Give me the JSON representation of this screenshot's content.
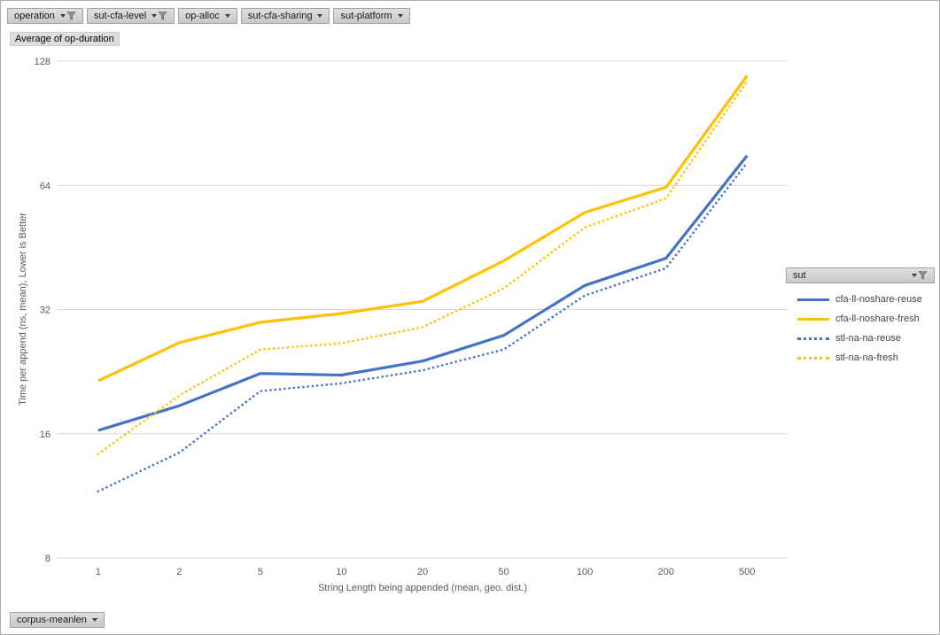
{
  "value_field": {
    "label": "Average of op-duration"
  },
  "pivot_filters": {
    "top": [
      {
        "label": "operation",
        "filtered": true
      },
      {
        "label": "sut-cfa-level",
        "filtered": true
      },
      {
        "label": "op-alloc",
        "filtered": false
      },
      {
        "label": "sut-cfa-sharing",
        "filtered": false
      },
      {
        "label": "sut-platform",
        "filtered": false
      }
    ],
    "legend": {
      "label": "sut",
      "filtered": true
    },
    "bottom": [
      {
        "label": "corpus-meanlen",
        "filtered": false
      }
    ]
  },
  "chart_data": {
    "type": "line",
    "title": "Average of op-duration",
    "categories": [
      "1",
      "2",
      "5",
      "10",
      "20",
      "50",
      "100",
      "200",
      "500"
    ],
    "xlabel": "String Length  being appended (mean, geo. dist.)",
    "ylabel": "Time per append (ns, mean),  Lower is Better",
    "y_scale": "log2",
    "ylim": [
      8,
      128
    ],
    "y_ticks": [
      8,
      16,
      32,
      64,
      128
    ],
    "grid": "horizontal",
    "legend_title": "sut",
    "legend_position": "right",
    "colors": {
      "blue": "#4472C4",
      "gold": "#FFC000",
      "gridline": "#D9D9D9",
      "axis_text": "#595959"
    },
    "series": [
      {
        "name": "cfa-ll-noshare-reuse",
        "color": "#4472C4",
        "style": "solid",
        "values": [
          16.3,
          18.7,
          22.4,
          22.2,
          24.0,
          27.7,
          36.6,
          42.6,
          75.5
        ]
      },
      {
        "name": "cfa-ll-noshare-fresh",
        "color": "#FFC000",
        "style": "solid",
        "values": [
          21.5,
          26.6,
          29.8,
          31.3,
          33.5,
          42.0,
          55.0,
          63.3,
          118.0
        ]
      },
      {
        "name": "stl-na-na-reuse",
        "color": "#4472C4",
        "style": "dotted",
        "values": [
          11.6,
          14.4,
          20.3,
          21.2,
          22.8,
          25.6,
          34.6,
          40.3,
          72.5
        ]
      },
      {
        "name": "stl-na-na-fresh",
        "color": "#FFC000",
        "style": "dotted",
        "values": [
          14.3,
          19.8,
          25.6,
          26.5,
          29.0,
          36.0,
          50.6,
          59.5,
          114.5
        ]
      }
    ]
  }
}
